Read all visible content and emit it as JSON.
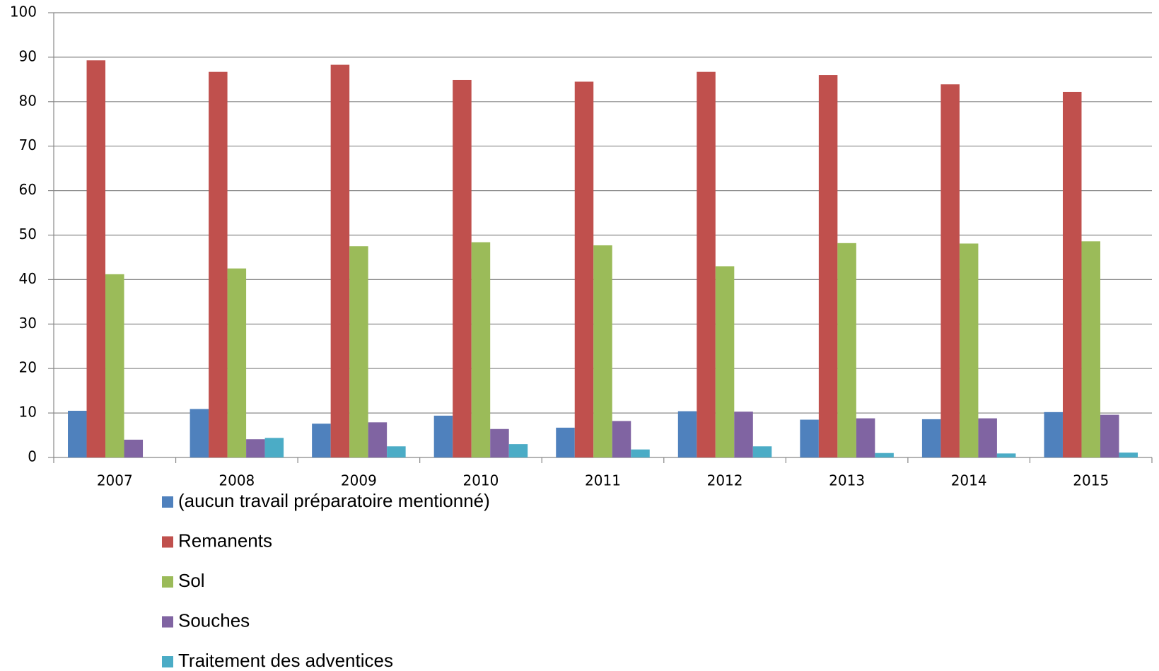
{
  "chart_data": {
    "type": "bar",
    "categories": [
      "2007",
      "2008",
      "2009",
      "2010",
      "2011",
      "2012",
      "2013",
      "2014",
      "2015"
    ],
    "series": [
      {
        "name": "(aucun travail préparatoire mentionné)",
        "color": "#4f81bd",
        "values": [
          10.5,
          10.9,
          7.6,
          9.4,
          6.7,
          10.4,
          8.5,
          8.6,
          10.2
        ]
      },
      {
        "name": "Remanents",
        "color": "#c0504d",
        "values": [
          89.3,
          86.7,
          88.3,
          84.9,
          84.5,
          86.7,
          86.0,
          83.9,
          82.2
        ]
      },
      {
        "name": "Sol",
        "color": "#9bbb59",
        "values": [
          41.2,
          42.5,
          47.5,
          48.4,
          47.7,
          43.0,
          48.2,
          48.1,
          48.6
        ]
      },
      {
        "name": "Souches",
        "color": "#8064a2",
        "values": [
          4.0,
          4.1,
          7.9,
          6.4,
          8.2,
          10.3,
          8.8,
          8.8,
          9.6
        ]
      },
      {
        "name": "Traitement des adventices",
        "color": "#4bacc6",
        "values": [
          0,
          4.4,
          2.5,
          3.0,
          1.8,
          2.5,
          1.0,
          0.9,
          1.1
        ]
      }
    ],
    "ylim": [
      0,
      100
    ],
    "yticks": [
      0,
      10,
      20,
      30,
      40,
      50,
      60,
      70,
      80,
      90,
      100
    ],
    "grid": true
  }
}
